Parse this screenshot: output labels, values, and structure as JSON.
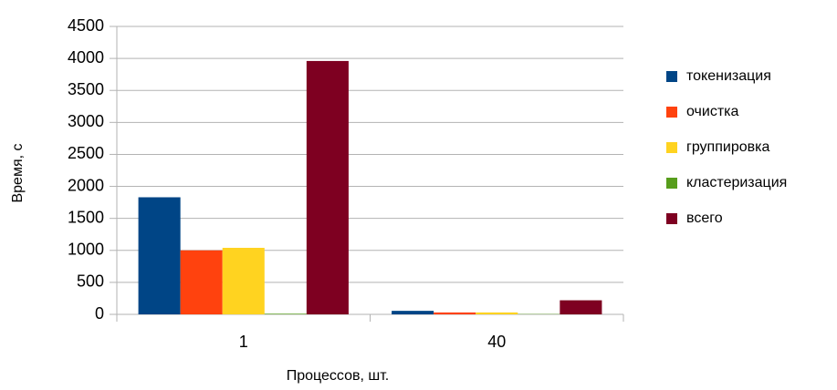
{
  "chart_data": {
    "type": "bar",
    "x_label": "Процессов, шт.",
    "y_label": "Время, с",
    "categories": [
      "1",
      "40"
    ],
    "series": [
      {
        "name": "токенизация",
        "color": "#004586",
        "values": [
          1830,
          55
        ]
      },
      {
        "name": "очистка",
        "color": "#ff420e",
        "values": [
          1000,
          30
        ]
      },
      {
        "name": "группировка",
        "color": "#ffd320",
        "values": [
          1040,
          30
        ]
      },
      {
        "name": "кластеризация",
        "color": "#579d1c",
        "values": [
          10,
          5
        ]
      },
      {
        "name": "всего",
        "color": "#7e0021",
        "values": [
          3960,
          220
        ]
      }
    ],
    "ylim": [
      0,
      4500
    ],
    "yticks": [
      0,
      500,
      1000,
      1500,
      2000,
      2500,
      3000,
      3500,
      4000,
      4500
    ],
    "grid": true,
    "legend": "right"
  }
}
